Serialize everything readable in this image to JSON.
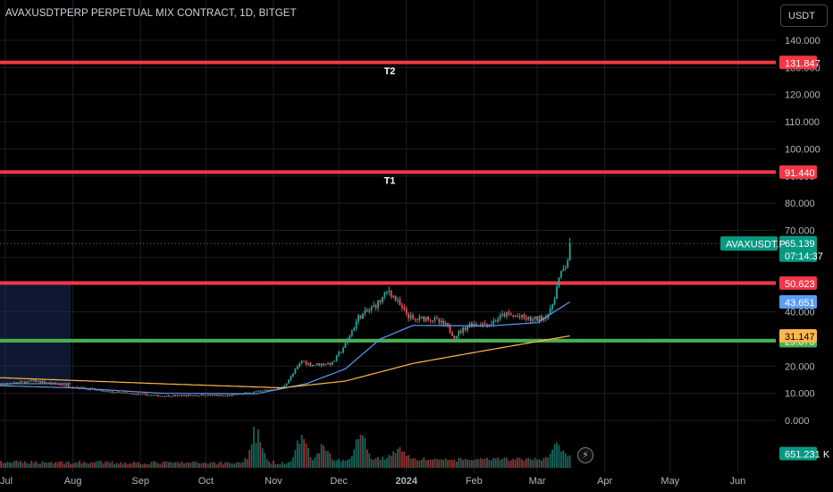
{
  "title": "AVAXUSDTPERP PERPETUAL MIX CONTRACT, 1D, BITGET",
  "currency": "USDT",
  "chart_data": {
    "type": "candlestick",
    "symbol": "AVAXUSDT.P",
    "interval": "1D",
    "exchange": "BITGET",
    "x_ticks": [
      "Jul",
      "Aug",
      "Sep",
      "Oct",
      "Nov",
      "Dec",
      "2024",
      "Feb",
      "Mar",
      "Apr",
      "May",
      "Jun"
    ],
    "y_ticks": [
      "0.000",
      "10.000",
      "20.000",
      "30.000",
      "40.000",
      "50.000",
      "60.000",
      "70.000",
      "80.000",
      "90.000",
      "100.000",
      "110.000",
      "120.000",
      "130.000",
      "140.000"
    ],
    "ylim": [
      -3,
      150
    ],
    "last_price": "65.139",
    "countdown": "07:14:37",
    "volume_label": "651.231 K",
    "price_anchors": [
      [
        "2023-06-20",
        12.5
      ],
      [
        "2023-07-14",
        14.5
      ],
      [
        "2023-08-01",
        12.5
      ],
      [
        "2023-08-17",
        10.5
      ],
      [
        "2023-09-11",
        9.0
      ],
      [
        "2023-10-01",
        9.3
      ],
      [
        "2023-10-10",
        9.0
      ],
      [
        "2023-10-24",
        10.5
      ],
      [
        "2023-11-05",
        12.0
      ],
      [
        "2023-11-09",
        16.0
      ],
      [
        "2023-11-14",
        22.0
      ],
      [
        "2023-11-18",
        20.5
      ],
      [
        "2023-11-28",
        21.0
      ],
      [
        "2023-12-04",
        28.0
      ],
      [
        "2023-12-10",
        38.0
      ],
      [
        "2023-12-14",
        40.0
      ],
      [
        "2023-12-20",
        44.0
      ],
      [
        "2023-12-24",
        48.0
      ],
      [
        "2023-12-30",
        41.0
      ],
      [
        "2024-01-04",
        37.0
      ],
      [
        "2024-01-11",
        38.0
      ],
      [
        "2024-01-19",
        35.0
      ],
      [
        "2024-01-23",
        31.0
      ],
      [
        "2024-01-30",
        35.5
      ],
      [
        "2024-02-08",
        35.5
      ],
      [
        "2024-02-15",
        39.0
      ],
      [
        "2024-02-22",
        38.0
      ],
      [
        "2024-02-28",
        37.0
      ],
      [
        "2024-03-04",
        38.0
      ],
      [
        "2024-03-07",
        40.0
      ],
      [
        "2024-03-09",
        46.0
      ],
      [
        "2024-03-11",
        52.0
      ],
      [
        "2024-03-14",
        57.0
      ],
      [
        "2024-03-16",
        62.0
      ]
    ],
    "ma_fast_anchors": [
      [
        "2023-06-20",
        13.0
      ],
      [
        "2023-08-01",
        12.0
      ],
      [
        "2023-09-11",
        10.0
      ],
      [
        "2023-10-24",
        9.8
      ],
      [
        "2023-11-16",
        13.5
      ],
      [
        "2023-12-04",
        19.0
      ],
      [
        "2023-12-20",
        30.0
      ],
      [
        "2024-01-04",
        35.0
      ],
      [
        "2024-02-08",
        34.8
      ],
      [
        "2024-03-01",
        36.0
      ],
      [
        "2024-03-16",
        43.651
      ]
    ],
    "ma_slow_anchors": [
      [
        "2023-06-20",
        16.0
      ],
      [
        "2023-09-11",
        13.5
      ],
      [
        "2023-11-05",
        12.0
      ],
      [
        "2023-12-04",
        14.5
      ],
      [
        "2024-01-04",
        21.0
      ],
      [
        "2024-02-08",
        26.0
      ],
      [
        "2024-03-16",
        31.147
      ]
    ],
    "volume_spikes": [
      [
        "2023-10-24",
        2.8
      ],
      [
        "2023-11-14",
        2.1
      ],
      [
        "2023-11-24",
        1.6
      ],
      [
        "2023-12-11",
        2.3
      ],
      [
        "2023-12-29",
        1.2
      ],
      [
        "2024-03-10",
        1.2
      ]
    ],
    "levels": [
      {
        "label": "T2",
        "value": 131.847,
        "price_label": "131.847",
        "color": "#f23645"
      },
      {
        "label": "T1",
        "value": 91.44,
        "price_label": "91.440",
        "color": "#f23645"
      },
      {
        "label": "",
        "value": 50.623,
        "price_label": "50.623",
        "color": "#f23645"
      },
      {
        "label": "",
        "value": 29.373,
        "price_label": "29.373",
        "color": "#4caf50"
      }
    ],
    "price_badges": [
      {
        "text": "43.651",
        "value": 43.651,
        "bg": "#5b9cf6",
        "fg": "#ffffff"
      },
      {
        "text": "31.147",
        "value": 31.147,
        "bg": "#ffb74d",
        "fg": "#000000"
      }
    ],
    "zone": {
      "start": "2023-06-20",
      "end": "2023-07-31",
      "low": 13.5,
      "high": 51.0
    },
    "colors": {
      "up": "#26a69a",
      "down": "#ef5350",
      "ma_fast": "#5b9cf6",
      "ma_slow": "#ffb74d",
      "grid": "#1c1e26",
      "zone": "#1a2d5a",
      "last": "#089981"
    }
  }
}
